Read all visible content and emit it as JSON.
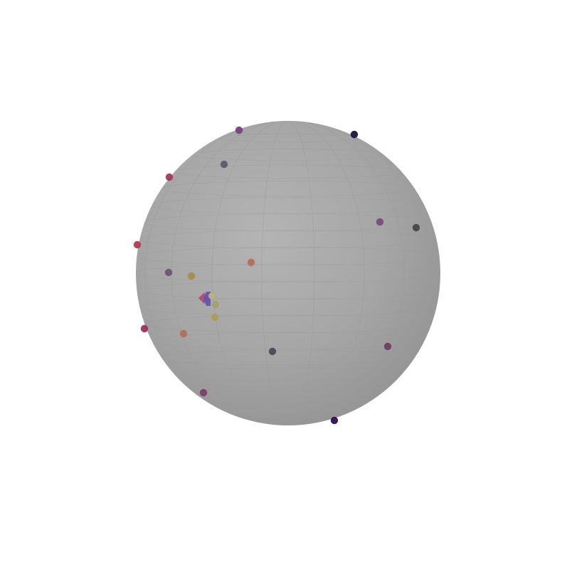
{
  "scene": {
    "sphere_color": "#a8a8a8",
    "background": "#ffffff",
    "points": [
      {
        "id": "p1",
        "color": "#7a3f7e"
      },
      {
        "id": "p2",
        "color": "#1e1244"
      },
      {
        "id": "p3",
        "color": "#5c5a6c"
      },
      {
        "id": "p4",
        "color": "#a23a5a"
      },
      {
        "id": "p5",
        "color": "#7a4c7a"
      },
      {
        "id": "p6",
        "color": "#4a4646"
      },
      {
        "id": "p7",
        "color": "#b43a4a"
      },
      {
        "id": "p8",
        "color": "#b0705a"
      },
      {
        "id": "p9",
        "color": "#6a5474"
      },
      {
        "id": "p10",
        "color": "#b08a50"
      },
      {
        "id": "p11",
        "color": "#aa9c5a"
      },
      {
        "id": "p12",
        "color": "#a4a070"
      },
      {
        "id": "p13",
        "color": "#9a2e5a"
      },
      {
        "id": "p14",
        "color": "#b07058"
      },
      {
        "id": "p15",
        "color": "#4c4a5a"
      },
      {
        "id": "p16",
        "color": "#6e3e64"
      },
      {
        "id": "p17",
        "color": "#7a3e6a"
      },
      {
        "id": "p18",
        "color": "#2e0e54"
      },
      {
        "id": "p19",
        "color": "#a89c5a"
      }
    ],
    "cluster_markers": [
      {
        "id": "m1",
        "color": "#b04870",
        "shape": "diamond"
      },
      {
        "id": "m2",
        "color": "#5a52b0",
        "shape": "arrow"
      },
      {
        "id": "m3",
        "color": "#b8b482",
        "shape": "circle"
      }
    ]
  }
}
